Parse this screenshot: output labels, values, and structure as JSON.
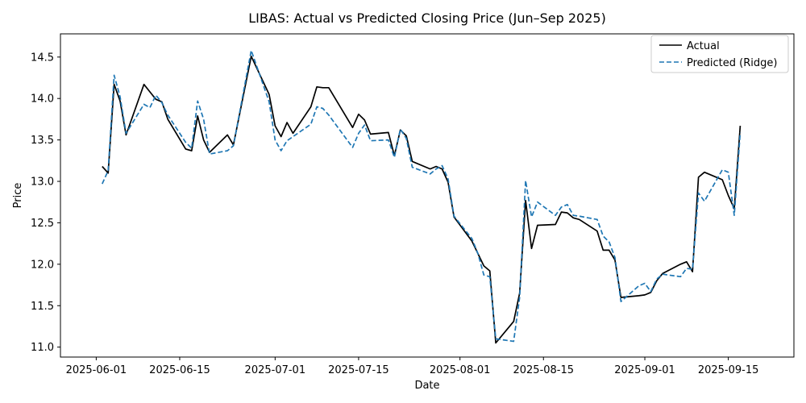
{
  "chart_data": {
    "type": "line",
    "title": "LIBAS: Actual vs Predicted Closing Price (Jun–Sep 2025)",
    "xlabel": "Date",
    "ylabel": "Price",
    "x_ticks": [
      "2025-06-01",
      "2025-06-15",
      "2025-07-01",
      "2025-07-15",
      "2025-08-01",
      "2025-08-15",
      "2025-09-01",
      "2025-09-15"
    ],
    "y_ticks": [
      "11.0",
      "11.5",
      "12.0",
      "12.5",
      "13.0",
      "13.5",
      "14.0",
      "14.5"
    ],
    "xlim": [
      "2025-05-26",
      "2025-09-26"
    ],
    "ylim": [
      10.88,
      14.78
    ],
    "grid": false,
    "legend_position": "top-right",
    "series": [
      {
        "name": "Actual",
        "color": "#000000",
        "style": "solid",
        "x": [
          "2025-06-02",
          "2025-06-03",
          "2025-06-04",
          "2025-06-05",
          "2025-06-06",
          "2025-06-09",
          "2025-06-10",
          "2025-06-11",
          "2025-06-12",
          "2025-06-13",
          "2025-06-16",
          "2025-06-17",
          "2025-06-18",
          "2025-06-19",
          "2025-06-20",
          "2025-06-23",
          "2025-06-24",
          "2025-06-27",
          "2025-06-30",
          "2025-07-01",
          "2025-07-02",
          "2025-07-03",
          "2025-07-04",
          "2025-07-07",
          "2025-07-08",
          "2025-07-09",
          "2025-07-10",
          "2025-07-14",
          "2025-07-15",
          "2025-07-16",
          "2025-07-17",
          "2025-07-20",
          "2025-07-21",
          "2025-07-22",
          "2025-07-23",
          "2025-07-24",
          "2025-07-27",
          "2025-07-28",
          "2025-07-29",
          "2025-07-30",
          "2025-07-31",
          "2025-08-03",
          "2025-08-04",
          "2025-08-05",
          "2025-08-06",
          "2025-08-07",
          "2025-08-10",
          "2025-08-11",
          "2025-08-12",
          "2025-08-13",
          "2025-08-14",
          "2025-08-17",
          "2025-08-18",
          "2025-08-19",
          "2025-08-20",
          "2025-08-21",
          "2025-08-24",
          "2025-08-25",
          "2025-08-26",
          "2025-08-27",
          "2025-08-28",
          "2025-08-31",
          "2025-09-01",
          "2025-09-02",
          "2025-09-03",
          "2025-09-04",
          "2025-09-07",
          "2025-09-08",
          "2025-09-09",
          "2025-09-10",
          "2025-09-11",
          "2025-09-14",
          "2025-09-15",
          "2025-09-16",
          "2025-09-17"
        ],
        "values": [
          13.18,
          13.1,
          14.17,
          13.97,
          13.56,
          14.17,
          14.08,
          13.99,
          13.96,
          13.75,
          13.39,
          13.37,
          13.79,
          13.5,
          13.35,
          13.56,
          13.44,
          14.51,
          14.05,
          13.67,
          13.54,
          13.71,
          13.58,
          13.9,
          14.14,
          14.13,
          14.13,
          13.65,
          13.81,
          13.74,
          13.57,
          13.59,
          13.31,
          13.62,
          13.55,
          13.24,
          13.15,
          13.18,
          13.15,
          12.99,
          12.57,
          12.28,
          12.13,
          11.98,
          11.92,
          11.05,
          11.31,
          11.65,
          12.77,
          12.19,
          12.47,
          12.48,
          12.63,
          12.62,
          12.56,
          12.54,
          12.4,
          12.17,
          12.17,
          12.05,
          11.6,
          11.62,
          11.63,
          11.66,
          11.8,
          11.89,
          12.0,
          12.03,
          11.91,
          13.05,
          13.11,
          13.02,
          12.83,
          12.67,
          13.67
        ]
      },
      {
        "name": "Predicted (Ridge)",
        "color": "#1f77b4",
        "style": "dashed",
        "x": [
          "2025-06-02",
          "2025-06-03",
          "2025-06-04",
          "2025-06-05",
          "2025-06-06",
          "2025-06-09",
          "2025-06-10",
          "2025-06-11",
          "2025-06-12",
          "2025-06-13",
          "2025-06-16",
          "2025-06-17",
          "2025-06-18",
          "2025-06-19",
          "2025-06-20",
          "2025-06-23",
          "2025-06-24",
          "2025-06-27",
          "2025-06-30",
          "2025-07-01",
          "2025-07-02",
          "2025-07-03",
          "2025-07-04",
          "2025-07-07",
          "2025-07-08",
          "2025-07-09",
          "2025-07-10",
          "2025-07-14",
          "2025-07-15",
          "2025-07-16",
          "2025-07-17",
          "2025-07-20",
          "2025-07-21",
          "2025-07-22",
          "2025-07-23",
          "2025-07-24",
          "2025-07-27",
          "2025-07-28",
          "2025-07-29",
          "2025-07-30",
          "2025-07-31",
          "2025-08-03",
          "2025-08-04",
          "2025-08-05",
          "2025-08-06",
          "2025-08-07",
          "2025-08-10",
          "2025-08-11",
          "2025-08-12",
          "2025-08-13",
          "2025-08-14",
          "2025-08-17",
          "2025-08-18",
          "2025-08-19",
          "2025-08-20",
          "2025-08-21",
          "2025-08-24",
          "2025-08-25",
          "2025-08-26",
          "2025-08-27",
          "2025-08-28",
          "2025-08-31",
          "2025-09-01",
          "2025-09-02",
          "2025-09-03",
          "2025-09-04",
          "2025-09-07",
          "2025-09-08",
          "2025-09-09",
          "2025-09-10",
          "2025-09-11",
          "2025-09-14",
          "2025-09-15",
          "2025-09-16",
          "2025-09-17"
        ],
        "values": [
          12.97,
          13.13,
          14.28,
          14.02,
          13.58,
          13.93,
          13.89,
          14.04,
          13.95,
          13.8,
          13.47,
          13.4,
          13.97,
          13.75,
          13.33,
          13.37,
          13.43,
          14.58,
          13.96,
          13.5,
          13.37,
          13.49,
          13.54,
          13.69,
          13.9,
          13.88,
          13.8,
          13.41,
          13.58,
          13.68,
          13.49,
          13.5,
          13.29,
          13.63,
          13.52,
          13.17,
          13.09,
          13.15,
          13.19,
          13.03,
          12.58,
          12.31,
          12.13,
          11.87,
          11.85,
          11.1,
          11.07,
          11.6,
          13.01,
          12.57,
          12.75,
          12.59,
          12.69,
          12.72,
          12.59,
          12.58,
          12.54,
          12.34,
          12.27,
          12.08,
          11.55,
          11.74,
          11.77,
          11.67,
          11.82,
          11.88,
          11.85,
          11.95,
          11.94,
          12.86,
          12.76,
          13.14,
          13.11,
          12.59,
          13.59
        ]
      }
    ]
  }
}
